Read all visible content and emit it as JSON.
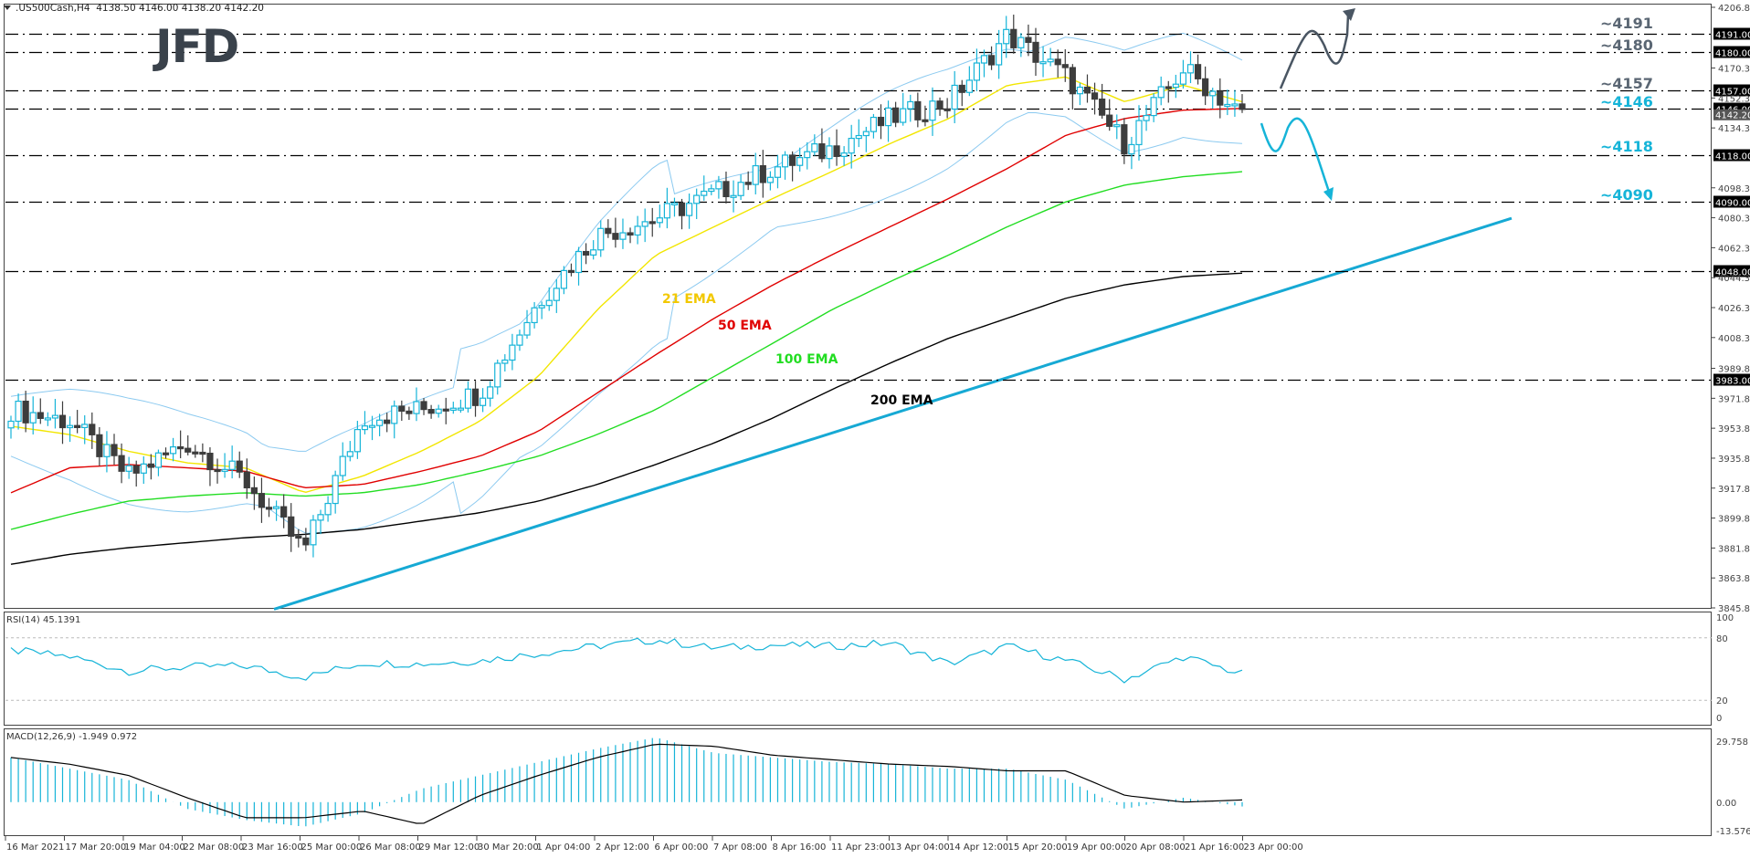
{
  "header": {
    "symbol": ".US500Cash,H4",
    "ohlc": "4138.50 4146.00 4138.20 4142.20",
    "logo_text": "JFD"
  },
  "colors": {
    "bull_candle": "#16b4d8",
    "bear_candle": "#3d3d3d",
    "ema21": "#f2e600",
    "ema50": "#e00000",
    "ema100": "#22dd22",
    "ema200": "#000000",
    "bollinger": "#8ccaf0",
    "trendline": "#16a9d4",
    "bull_arrow": "#4a5663",
    "bear_arrow": "#16b4d8",
    "level_gray": "#5a6673",
    "level_blue": "#16b4d8",
    "rsi_line": "#16b4d8",
    "macd_hist": "#16b4d8",
    "macd_signal": "#000000"
  },
  "price_axis": {
    "ticks": [
      "4206.80",
      "4170.30",
      "4152.30",
      "4134.30",
      "4098.30",
      "4080.30",
      "4062.30",
      "4044.30",
      "4026.30",
      "4008.30",
      "3989.80",
      "3971.80",
      "3953.80",
      "3935.80",
      "3917.80",
      "3899.80",
      "3881.80",
      "3863.80",
      "3845.80"
    ],
    "tick_values": [
      4206.8,
      4170.3,
      4152.3,
      4134.3,
      4098.3,
      4080.3,
      4062.3,
      4044.3,
      4026.3,
      4008.3,
      3989.8,
      3971.8,
      3953.8,
      3935.8,
      3917.8,
      3899.8,
      3881.8,
      3863.8,
      3845.8
    ],
    "current_price": "4142.20"
  },
  "levels": [
    {
      "value": 4191,
      "axis_label": "4191.00",
      "text": "~4191",
      "color": "gray"
    },
    {
      "value": 4180,
      "axis_label": "4180.00",
      "text": "~4180",
      "color": "gray"
    },
    {
      "value": 4157,
      "axis_label": "4157.00",
      "text": "~4157",
      "color": "gray"
    },
    {
      "value": 4146,
      "axis_label": "4146.00",
      "text": "~4146",
      "color": "blue"
    },
    {
      "value": 4118,
      "axis_label": "4118.00",
      "text": "~4118",
      "color": "blue"
    },
    {
      "value": 4090,
      "axis_label": "4090.00",
      "text": "~4090",
      "color": "blue"
    },
    {
      "value": 4048,
      "axis_label": "4048.00",
      "text": "",
      "color": "none"
    },
    {
      "value": 3983,
      "axis_label": "3983.00",
      "text": "",
      "color": "none"
    }
  ],
  "ema_labels": {
    "ema21": "21 EMA",
    "ema50": "50 EMA",
    "ema100": "100 EMA",
    "ema200": "200 EMA"
  },
  "rsi": {
    "title": "RSI(14) 45.1391",
    "axis": [
      "100",
      "80",
      "20",
      "0"
    ]
  },
  "macd": {
    "title": "MACD(12,26,9) -1.949 0.972",
    "axis": [
      "29.758",
      "0.00",
      "-13.576"
    ]
  },
  "time_axis": [
    "16 Mar 2021",
    "17 Mar 20:00",
    "19 Mar 04:00",
    "22 Mar 08:00",
    "23 Mar 16:00",
    "25 Mar 00:00",
    "26 Mar 08:00",
    "29 Mar 12:00",
    "30 Mar 20:00",
    "1 Apr 04:00",
    "2 Apr 12:00",
    "6 Apr 00:00",
    "7 Apr 08:00",
    "8 Apr 16:00",
    "11 Apr 23:00",
    "13 Apr 04:00",
    "14 Apr 12:00",
    "15 Apr 20:00",
    "19 Apr 00:00",
    "20 Apr 08:00",
    "21 Apr 16:00",
    "23 Apr 00:00"
  ],
  "chart_data": [
    {
      "type": "candlestick",
      "title": ".US500Cash,H4 4138.50 4146.00 4138.20 4142.20",
      "xlabel": "",
      "ylabel": "",
      "ylim": [
        3845.8,
        4206.8
      ],
      "x": [
        "16 Mar 2021",
        "17 Mar 20:00",
        "19 Mar 04:00",
        "22 Mar 08:00",
        "23 Mar 16:00",
        "25 Mar 00:00",
        "26 Mar 08:00",
        "29 Mar 12:00",
        "30 Mar 20:00",
        "1 Apr 04:00",
        "2 Apr 12:00",
        "6 Apr 00:00",
        "7 Apr 08:00",
        "8 Apr 16:00",
        "11 Apr 23:00",
        "13 Apr 04:00",
        "14 Apr 12:00",
        "15 Apr 20:00",
        "19 Apr 00:00",
        "20 Apr 08:00",
        "21 Apr 16:00",
        "23 Apr 00:00"
      ],
      "close_approx": [
        3965,
        3958,
        3925,
        3945,
        3922,
        3880,
        3960,
        3965,
        3975,
        4030,
        4070,
        4080,
        4095,
        4110,
        4122,
        4140,
        4150,
        4190,
        4165,
        4125,
        4170,
        4142
      ],
      "series": [
        {
          "name": "21 EMA",
          "values": [
            3955,
            3950,
            3940,
            3933,
            3930,
            3915,
            3925,
            3940,
            3958,
            3985,
            4025,
            4058,
            4075,
            4092,
            4108,
            4125,
            4140,
            4160,
            4165,
            4150,
            4160,
            4150
          ]
        },
        {
          "name": "50 EMA",
          "values": [
            3915,
            3930,
            3932,
            3930,
            3928,
            3918,
            3920,
            3928,
            3937,
            3952,
            3975,
            3998,
            4020,
            4040,
            4058,
            4075,
            4092,
            4110,
            4130,
            4140,
            4145,
            4146
          ]
        },
        {
          "name": "100 EMA",
          "values": [
            3893,
            3902,
            3910,
            3913,
            3915,
            3913,
            3915,
            3920,
            3928,
            3937,
            3950,
            3965,
            3985,
            4005,
            4025,
            4042,
            4058,
            4075,
            4090,
            4100,
            4105,
            4108
          ]
        },
        {
          "name": "200 EMA",
          "values": [
            3872,
            3878,
            3882,
            3885,
            3888,
            3890,
            3893,
            3898,
            3903,
            3910,
            3920,
            3932,
            3945,
            3960,
            3977,
            3993,
            4008,
            4020,
            4032,
            4040,
            4045,
            4047
          ]
        }
      ],
      "horizontal_levels": [
        4191,
        4180,
        4157,
        4146,
        4118,
        4090,
        4048,
        3983
      ],
      "trendline": {
        "from": [
          "24 Mar",
          3845
        ],
        "to": [
          "27 Apr",
          4080
        ]
      },
      "annotations": [
        "~4191",
        "~4180",
        "~4157",
        "~4146",
        "~4118",
        "~4090",
        "21 EMA",
        "50 EMA",
        "100 EMA",
        "200 EMA",
        "bullish scenario arrow above 4157",
        "bearish scenario arrow toward 4090"
      ]
    },
    {
      "type": "line",
      "title": "RSI(14) 45.1391",
      "ylim": [
        0,
        100
      ],
      "reference_lines": [
        20,
        80
      ],
      "x": [
        "16 Mar 2021",
        "17 Mar 20:00",
        "19 Mar 04:00",
        "22 Mar 08:00",
        "23 Mar 16:00",
        "25 Mar 00:00",
        "26 Mar 08:00",
        "29 Mar 12:00",
        "30 Mar 20:00",
        "1 Apr 04:00",
        "2 Apr 12:00",
        "6 Apr 00:00",
        "7 Apr 08:00",
        "8 Apr 16:00",
        "11 Apr 23:00",
        "13 Apr 04:00",
        "14 Apr 12:00",
        "15 Apr 20:00",
        "19 Apr 00:00",
        "20 Apr 08:00",
        "21 Apr 16:00",
        "23 Apr 00:00"
      ],
      "values": [
        68,
        62,
        48,
        52,
        53,
        42,
        56,
        55,
        58,
        65,
        72,
        78,
        70,
        73,
        72,
        75,
        55,
        72,
        58,
        40,
        62,
        45.14
      ]
    },
    {
      "type": "bar+line",
      "title": "MACD(12,26,9) -1.949 0.972",
      "ylim": [
        -13.576,
        29.758
      ],
      "x": [
        "16 Mar 2021",
        "17 Mar 20:00",
        "19 Mar 04:00",
        "22 Mar 08:00",
        "23 Mar 16:00",
        "25 Mar 00:00",
        "26 Mar 08:00",
        "29 Mar 12:00",
        "30 Mar 20:00",
        "1 Apr 04:00",
        "2 Apr 12:00",
        "6 Apr 00:00",
        "7 Apr 08:00",
        "8 Apr 16:00",
        "11 Apr 23:00",
        "13 Apr 04:00",
        "14 Apr 12:00",
        "15 Apr 20:00",
        "19 Apr 00:00",
        "20 Apr 08:00",
        "21 Apr 16:00",
        "23 Apr 00:00"
      ],
      "series": [
        {
          "name": "MACD histogram",
          "values": [
            20,
            15,
            10,
            -3,
            -8,
            -11,
            -5,
            6,
            12,
            18,
            24,
            29,
            22,
            20,
            18,
            17,
            15,
            15,
            10,
            -3,
            2,
            -1.949
          ]
        },
        {
          "name": "Signal",
          "values": [
            20,
            17,
            12,
            2,
            -7,
            -7,
            -4,
            -10,
            3,
            12,
            20,
            26,
            25,
            21,
            19,
            17,
            16,
            14,
            14,
            3,
            0,
            0.972
          ]
        }
      ]
    }
  ]
}
